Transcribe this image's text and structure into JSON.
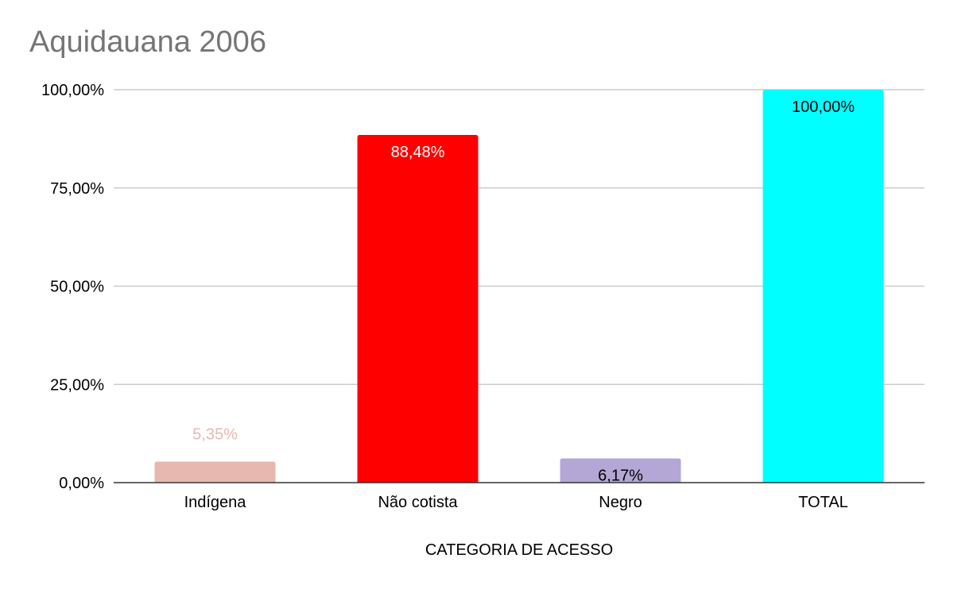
{
  "chart_data": {
    "type": "bar",
    "title": "Aquidauana 2006",
    "xlabel": "CATEGORIA DE ACESSO",
    "ylabel": "",
    "ylim": [
      0,
      100
    ],
    "yticks": [
      0,
      25,
      50,
      75,
      100
    ],
    "ytick_labels": [
      "0,00%",
      "25,00%",
      "50,00%",
      "75,00%",
      "100,00%"
    ],
    "grid": true,
    "legend": "none",
    "categories": [
      "Indígena",
      "Não cotista",
      "Negro",
      "TOTAL"
    ],
    "values": [
      5.35,
      88.48,
      6.17,
      100
    ],
    "data_labels": [
      "5,35%",
      "88,48%",
      "6,17%",
      "100,00%"
    ],
    "colors": [
      "#e6b8af",
      "#ff0000",
      "#b4a7d6",
      "#00ffff"
    ],
    "label_colors": [
      "#e6b8af",
      "#ffffff",
      "#000000",
      "#000000"
    ],
    "label_position": [
      "outside",
      "inside",
      "inside",
      "inside"
    ]
  }
}
